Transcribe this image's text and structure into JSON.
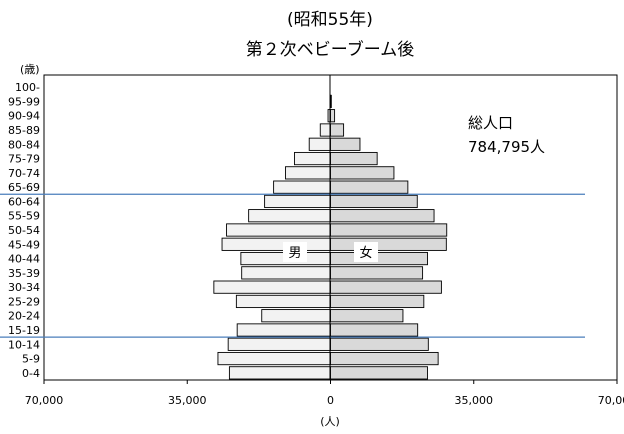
{
  "chart_data": {
    "type": "bar",
    "orientation": "horizontal",
    "subtype": "population-pyramid",
    "title": "(昭和55年)",
    "subtitle": "第２次ベビーブーム後",
    "age_axis_label": "(歳)",
    "xlabel": "(人)",
    "xlim": [
      -70000,
      70000
    ],
    "x_tick_labels": [
      "70,000",
      "35,000",
      "0",
      "35,000",
      "70,000"
    ],
    "x_tick_values": [
      -70000,
      -35000,
      0,
      35000,
      70000
    ],
    "grid": false,
    "categories": [
      "0-4",
      "5-9",
      "10-14",
      "15-19",
      "20-24",
      "25-29",
      "30-34",
      "35-39",
      "40-44",
      "45-49",
      "50-54",
      "55-59",
      "60-64",
      "65-69",
      "70-74",
      "75-79",
      "80-84",
      "85-89",
      "90-94",
      "95-99",
      "100-"
    ],
    "series": [
      {
        "name": "男",
        "color": "#f2f2f2",
        "values": [
          24700,
          27500,
          25000,
          22800,
          16800,
          23000,
          28500,
          21700,
          21900,
          26500,
          25400,
          20000,
          16100,
          13900,
          11000,
          8800,
          5200,
          2500,
          600,
          100,
          0
        ]
      },
      {
        "name": "女",
        "color": "#d9d9d9",
        "values": [
          23700,
          26300,
          23900,
          21300,
          17700,
          22800,
          27100,
          22500,
          23700,
          28300,
          28400,
          25300,
          21200,
          18900,
          15500,
          11400,
          7200,
          3200,
          1000,
          200,
          0
        ]
      }
    ],
    "annotations": {
      "total_label": "総人口",
      "total_value": "784,795人"
    },
    "reference_lines": [
      {
        "between_upper": "65-69",
        "between_lower": "60-64",
        "color": "#4a7ebb"
      },
      {
        "between_upper": "15-19",
        "between_lower": "10-14",
        "color": "#4a7ebb"
      }
    ]
  }
}
